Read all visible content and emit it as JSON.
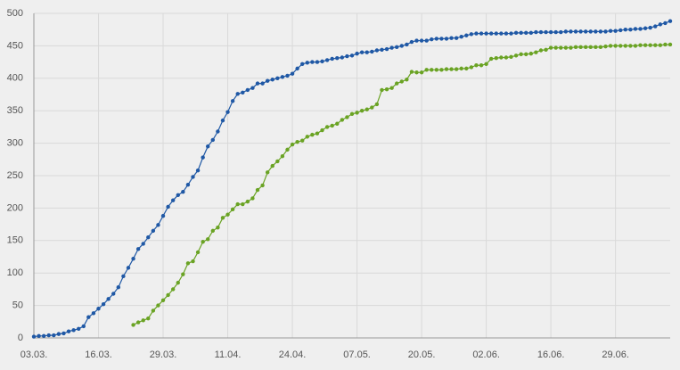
{
  "chart_data": {
    "type": "line",
    "categories": [
      "03.03.",
      null,
      null,
      null,
      null,
      null,
      null,
      null,
      null,
      null,
      null,
      null,
      null,
      "16.03.",
      null,
      null,
      null,
      null,
      null,
      null,
      null,
      null,
      null,
      null,
      null,
      null,
      "29.03.",
      null,
      null,
      null,
      null,
      null,
      null,
      null,
      null,
      null,
      null,
      null,
      null,
      "11.04.",
      null,
      null,
      null,
      null,
      null,
      null,
      null,
      null,
      null,
      null,
      null,
      null,
      "24.04.",
      null,
      null,
      null,
      null,
      null,
      null,
      null,
      null,
      null,
      null,
      null,
      null,
      "07.05.",
      null,
      null,
      null,
      null,
      null,
      null,
      null,
      null,
      null,
      null,
      null,
      null,
      "20.05.",
      null,
      null,
      null,
      null,
      null,
      null,
      null,
      null,
      null,
      null,
      null,
      null,
      "02.06.",
      null,
      null,
      null,
      null,
      null,
      null,
      null,
      null,
      null,
      null,
      null,
      null,
      "16.06.",
      null,
      null,
      null,
      null,
      null,
      null,
      null,
      null,
      null,
      null,
      null,
      null,
      "29.06.",
      null,
      null,
      null,
      null,
      null,
      null,
      null,
      null,
      null,
      null,
      null
    ],
    "series": [
      {
        "color": "#1f58a5",
        "values": [
          2,
          3,
          3,
          4,
          4,
          6,
          7,
          10,
          12,
          14,
          18,
          32,
          38,
          45,
          52,
          60,
          68,
          78,
          95,
          108,
          122,
          137,
          145,
          155,
          165,
          174,
          188,
          202,
          212,
          220,
          225,
          236,
          248,
          258,
          278,
          295,
          305,
          318,
          335,
          348,
          365,
          376,
          378,
          382,
          385,
          392,
          392,
          396,
          398,
          400,
          402,
          404,
          407,
          415,
          422,
          424,
          425,
          425,
          426,
          428,
          430,
          431,
          432,
          434,
          435,
          438,
          440,
          440,
          441,
          443,
          444,
          445,
          447,
          448,
          450,
          452,
          456,
          458,
          458,
          458,
          460,
          461,
          461,
          461,
          462,
          462,
          464,
          466,
          468,
          469,
          469,
          469,
          469,
          469,
          469,
          469,
          469,
          470,
          470,
          470,
          470,
          471,
          471,
          471,
          471,
          471,
          471,
          472,
          472,
          472,
          472,
          472,
          472,
          472,
          472,
          472,
          473,
          473,
          474,
          475,
          475,
          476,
          476,
          477,
          478,
          480,
          483,
          485,
          488
        ]
      },
      {
        "color": "#6aa324",
        "values": [
          null,
          null,
          null,
          null,
          null,
          null,
          null,
          null,
          null,
          null,
          null,
          null,
          null,
          null,
          null,
          null,
          null,
          null,
          null,
          null,
          20,
          24,
          27,
          30,
          42,
          50,
          58,
          66,
          75,
          85,
          98,
          115,
          118,
          132,
          148,
          152,
          165,
          170,
          185,
          190,
          198,
          206,
          206,
          210,
          215,
          228,
          235,
          255,
          265,
          272,
          280,
          290,
          298,
          302,
          304,
          310,
          313,
          315,
          320,
          325,
          327,
          330,
          336,
          340,
          345,
          347,
          350,
          352,
          355,
          360,
          382,
          383,
          385,
          392,
          395,
          398,
          410,
          409,
          409,
          413,
          413,
          413,
          413,
          414,
          414,
          414,
          415,
          415,
          417,
          420,
          420,
          422,
          430,
          431,
          432,
          432,
          433,
          435,
          437,
          437,
          438,
          440,
          443,
          444,
          447,
          447,
          447,
          447,
          447,
          448,
          448,
          448,
          448,
          448,
          448,
          449,
          450,
          450,
          450,
          450,
          450,
          450,
          451,
          451,
          451,
          451,
          451,
          452,
          452
        ]
      }
    ],
    "ylim": [
      0,
      500
    ],
    "yticks": [
      0,
      50,
      100,
      150,
      200,
      250,
      300,
      350,
      400,
      450,
      500
    ],
    "grid": true
  }
}
